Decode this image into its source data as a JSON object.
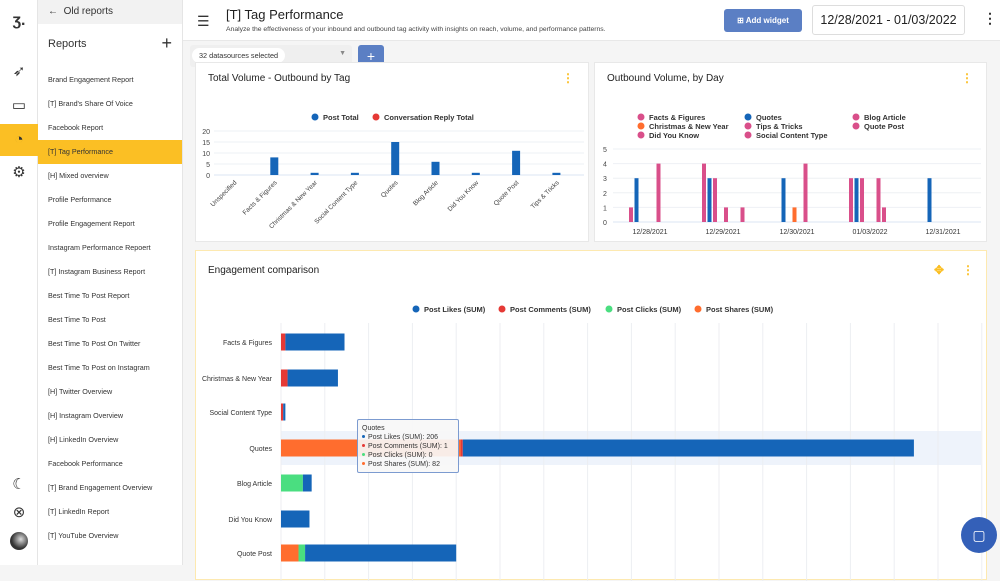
{
  "header": {
    "title": "[T] Tag Performance",
    "subtitle": "Analyze the effectiveness of your inbound and outbound tag activity with insights on reach, volume, and performance patterns.",
    "add_widget": "Add widget",
    "date_range": "12/28/2021 - 01/03/2022"
  },
  "filters": {
    "datasources": "32 datasources selected",
    "add": "+"
  },
  "sidebar": {
    "back": "Old reports",
    "heading": "Reports",
    "add": "+",
    "selected_index": 3,
    "items": [
      "Brand Engagement Report",
      "[T] Brand's Share Of Voice",
      "Facebook Report",
      "[T] Tag Performance",
      "[H] Mixed overview",
      "Profile Performance",
      "Profile Engagement Report",
      "Instagram Performance Repoert",
      "[T] Instagram Business Report",
      "Best Time To Post Report",
      "Best Time To Post",
      "Best Time To Post On Twitter",
      "Best Time To Post on Instagram",
      "[H] Twitter Overview",
      "[H] Instagram Overview",
      "[H] LinkedIn Overview",
      "Facebook Performance",
      "[T] Brand Engagement Overview",
      "[T] LinkedIn Report",
      "[T] YouTube Overview"
    ]
  },
  "rail": {
    "icons": [
      "logo-icon",
      "send-icon",
      "inbox-icon",
      "reports-icon",
      "settings-icon",
      "dark-mode-icon",
      "help-icon",
      "avatar"
    ],
    "accent": "#fbbf24"
  },
  "chart_data": [
    {
      "type": "bar",
      "title": "Total Volume - Outbound by Tag",
      "ylim": [
        0,
        20
      ],
      "yticks": [
        0,
        5,
        10,
        15,
        20
      ],
      "grid": true,
      "legend_position": "top",
      "categories": [
        "Unspecified",
        "Facts & Figures",
        "Christmas & New Year",
        "Social Content Type",
        "Quotes",
        "Blog Article",
        "Did You Know",
        "Quote Post",
        "Tips & Tricks"
      ],
      "series": [
        {
          "name": "Post Total",
          "color": "#1565b8",
          "values": [
            0,
            8,
            1,
            1,
            15,
            6,
            1,
            11,
            1
          ]
        },
        {
          "name": "Conversation Reply Total",
          "color": "#e53935",
          "values": [
            0,
            0,
            0,
            0,
            0,
            0,
            0,
            0,
            0
          ]
        }
      ]
    },
    {
      "type": "bar",
      "title": "Outbound Volume, by Day",
      "ylim": [
        0,
        5
      ],
      "yticks": [
        0,
        1,
        2,
        3,
        4,
        5
      ],
      "grid": true,
      "legend_position": "top",
      "categories": [
        "12/28/2021",
        "12/29/2021",
        "12/30/2021",
        "01/03/2022",
        "12/31/2021"
      ],
      "series": [
        {
          "name": "Facts & Figures",
          "color": "#d94f8a",
          "values": [
            1,
            4,
            0,
            3,
            0
          ]
        },
        {
          "name": "Quotes",
          "color": "#1565b8",
          "values": [
            3,
            3,
            3,
            3,
            3
          ]
        },
        {
          "name": "Blog Article",
          "color": "#d94f8a",
          "values": [
            0,
            3,
            0,
            3,
            0
          ]
        },
        {
          "name": "Christmas & New Year",
          "color": "#ff6d2e",
          "values": [
            0,
            0,
            1,
            0,
            0
          ]
        },
        {
          "name": "Tips & Tricks",
          "color": "#d94f8a",
          "values": [
            0,
            1,
            0,
            0,
            0
          ]
        },
        {
          "name": "Quote Post",
          "color": "#d94f8a",
          "values": [
            4,
            0,
            4,
            3,
            0
          ]
        },
        {
          "name": "Did You Know",
          "color": "#d94f8a",
          "values": [
            0,
            0,
            0,
            1,
            0
          ]
        },
        {
          "name": "Social Content Type",
          "color": "#d94f8a",
          "values": [
            0,
            1,
            0,
            0,
            0
          ]
        }
      ],
      "legend_order": [
        "Facts & Figures",
        "Christmas & New Year",
        "Did You Know",
        "Quotes",
        "Tips & Tricks",
        "Social Content Type",
        "Blog Article",
        "Quote Post"
      ]
    },
    {
      "type": "bar",
      "orientation": "horizontal",
      "stacked": true,
      "title": "Engagement comparison",
      "xlim": [
        0,
        320
      ],
      "grid": true,
      "legend_position": "top",
      "categories": [
        "Facts & Figures",
        "Christmas & New Year",
        "Social Content Type",
        "Quotes",
        "Blog Article",
        "Did You Know",
        "Quote Post"
      ],
      "series": [
        {
          "name": "Post Likes (SUM)",
          "color": "#1565b8",
          "values": [
            27,
            23,
            1,
            206,
            4,
            13,
            69
          ]
        },
        {
          "name": "Post Comments (SUM)",
          "color": "#e53935",
          "values": [
            2,
            3,
            1,
            1,
            0,
            0,
            0
          ]
        },
        {
          "name": "Post Clicks (SUM)",
          "color": "#4ade80",
          "values": [
            0,
            0,
            0,
            0,
            10,
            0,
            3
          ]
        },
        {
          "name": "Post Shares (SUM)",
          "color": "#ff6d2e",
          "values": [
            0,
            0,
            0,
            82,
            0,
            0,
            8
          ]
        }
      ],
      "stack_order": [
        "Post Shares (SUM)",
        "Post Clicks (SUM)",
        "Post Comments (SUM)",
        "Post Likes (SUM)"
      ],
      "highlighted": "Quotes",
      "tooltip": {
        "title": "Quotes",
        "rows": [
          "Post Likes (SUM): 206",
          "Post Comments (SUM): 1",
          "Post Clicks (SUM): 0",
          "Post Shares (SUM): 82"
        ]
      }
    }
  ]
}
